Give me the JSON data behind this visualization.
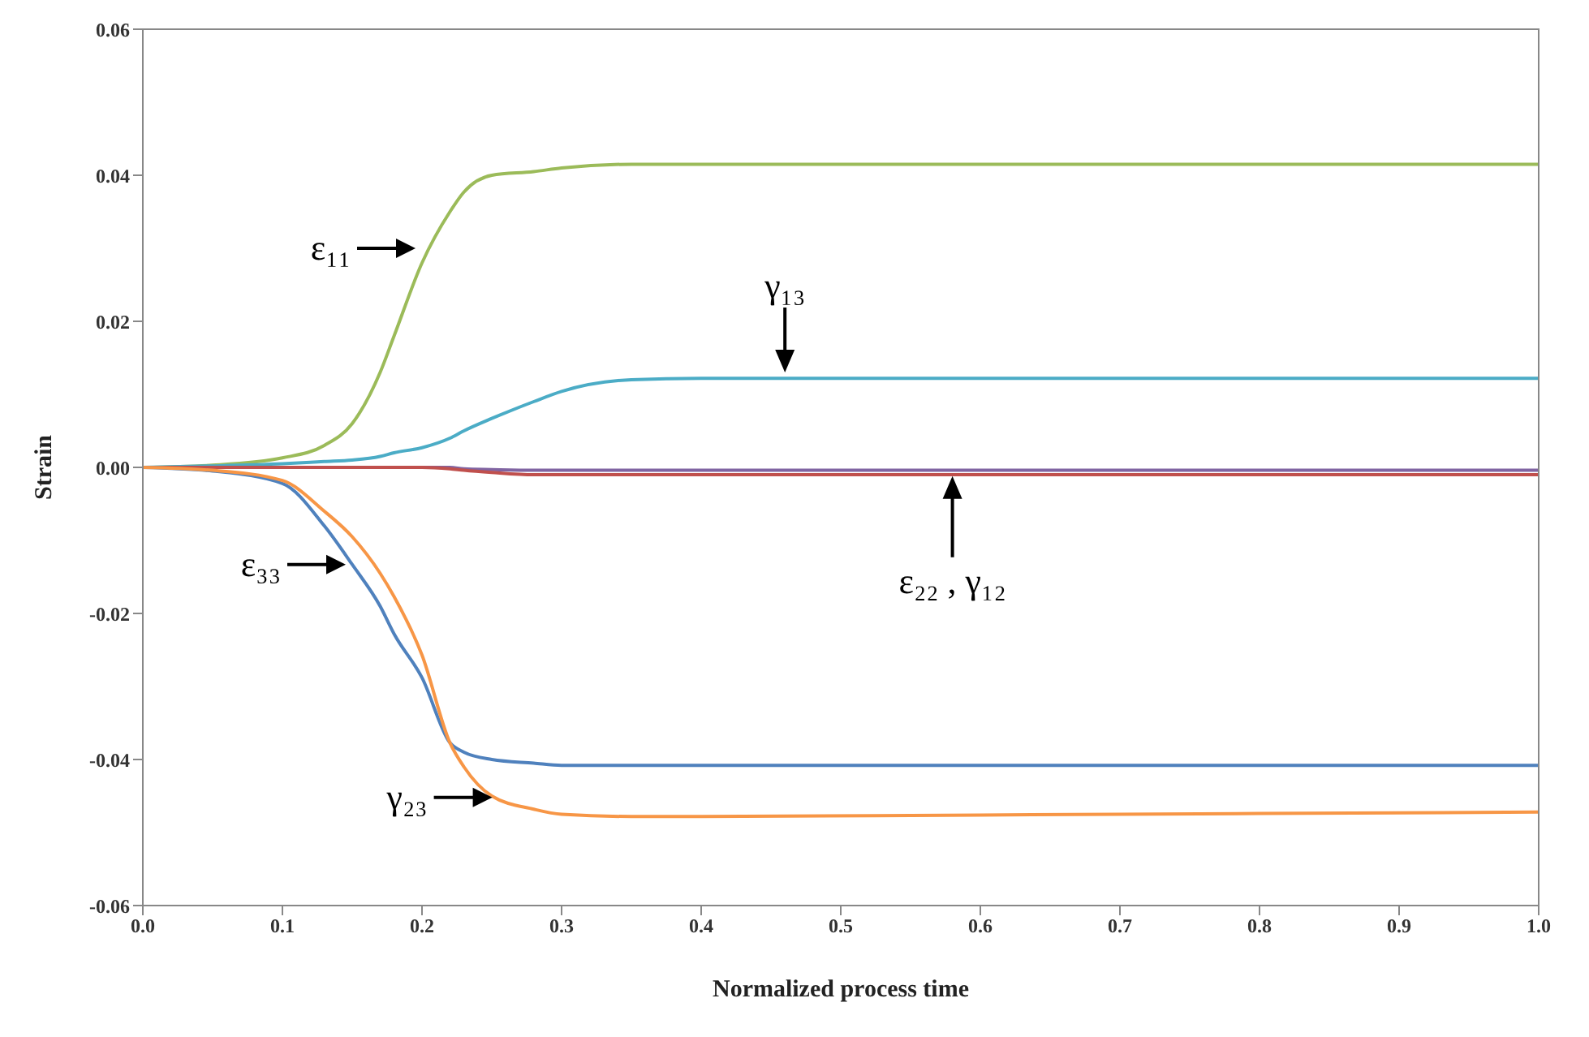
{
  "chart_data": {
    "type": "line",
    "xlabel": "Normalized process time",
    "ylabel": "Strain",
    "xlim": [
      0,
      1
    ],
    "xticks": [
      {
        "value": 0,
        "label": "0.0"
      },
      {
        "value": 0.1,
        "label": "0.1"
      },
      {
        "value": 0.2,
        "label": "0.2"
      },
      {
        "value": 0.3,
        "label": "0.3"
      },
      {
        "value": 0.4,
        "label": "0.4"
      },
      {
        "value": 0.5,
        "label": "0.5"
      },
      {
        "value": 0.6,
        "label": "0.6"
      },
      {
        "value": 0.7,
        "label": "0.7"
      },
      {
        "value": 0.8,
        "label": "0.8"
      },
      {
        "value": 0.9,
        "label": "0.9"
      },
      {
        "value": 1,
        "label": "1.0"
      }
    ],
    "ylim": [
      -0.06,
      0.06
    ],
    "yticks": [
      {
        "value": -0.06,
        "label": "-0.06"
      },
      {
        "value": -0.04,
        "label": "-0.04"
      },
      {
        "value": -0.02,
        "label": "-0.02"
      },
      {
        "value": 0,
        "label": "0.00"
      },
      {
        "value": 0.02,
        "label": "0.02"
      },
      {
        "value": 0.04,
        "label": "0.04"
      },
      {
        "value": 0.06,
        "label": "0.06"
      }
    ],
    "x": [
      0,
      0.05,
      0.1,
      0.13,
      0.15,
      0.17,
      0.18,
      0.2,
      0.22,
      0.23,
      0.25,
      0.28,
      0.3,
      0.35,
      0.4,
      0.6,
      0.8,
      1.0
    ],
    "marker": "none",
    "line_style": "solid",
    "series": [
      {
        "color": "#9bbb59",
        "values": [
          0,
          0.0003,
          0.0013,
          0.003,
          0.006,
          0.013,
          0.018,
          0.028,
          0.035,
          0.0377,
          0.04,
          0.0405,
          0.041,
          0.0415,
          0.0415,
          0.0415,
          0.0415,
          0.0415
        ]
      },
      {
        "color": "#4bacc6",
        "values": [
          0,
          0.0002,
          0.0005,
          0.0008,
          0.001,
          0.0015,
          0.002,
          0.0027,
          0.004,
          0.005,
          0.0067,
          0.009,
          0.0104,
          0.012,
          0.0122,
          0.0122,
          0.0122,
          0.0122
        ]
      },
      {
        "color": "#8064a2",
        "values": [
          0,
          0,
          0,
          0,
          0,
          0,
          0,
          0,
          0,
          -0.0002,
          -0.0003,
          -0.0004,
          -0.0004,
          -0.0004,
          -0.0004,
          -0.0004,
          -0.0004,
          -0.0004
        ]
      },
      {
        "color": "#c0504d",
        "values": [
          0,
          0,
          0,
          0,
          0,
          0,
          0,
          0,
          -0.0002,
          -0.0004,
          -0.0007,
          -0.001,
          -0.001,
          -0.001,
          -0.001,
          -0.001,
          -0.001,
          -0.001
        ]
      },
      {
        "color": "#4f81bd",
        "values": [
          0,
          -0.0005,
          -0.0022,
          -0.008,
          -0.0133,
          -0.019,
          -0.0228,
          -0.0288,
          -0.0377,
          -0.039,
          -0.04,
          -0.0405,
          -0.0408,
          -0.0408,
          -0.0408,
          -0.0408,
          -0.0408,
          -0.0408
        ]
      },
      {
        "color": "#f79646",
        "values": [
          0,
          -0.0004,
          -0.0018,
          -0.006,
          -0.0095,
          -0.0145,
          -0.0177,
          -0.0257,
          -0.0377,
          -0.041,
          -0.045,
          -0.0468,
          -0.0475,
          -0.0478,
          -0.0478,
          -0.0476,
          -0.0474,
          -0.0472
        ]
      }
    ],
    "annotations": [
      {
        "text": "ε₁₁",
        "x": 0.2,
        "y": 0.03
      },
      {
        "text": "γ₁₃",
        "x": 0.46,
        "y": 0.013
      },
      {
        "text": "ε₂₂ , γ₁₂",
        "x": 0.58,
        "y": -0.0012
      },
      {
        "text": "ε₃₃",
        "x": 0.15,
        "y": -0.0133
      },
      {
        "text": "γ₂₃",
        "x": 0.255,
        "y": -0.0452
      }
    ]
  }
}
